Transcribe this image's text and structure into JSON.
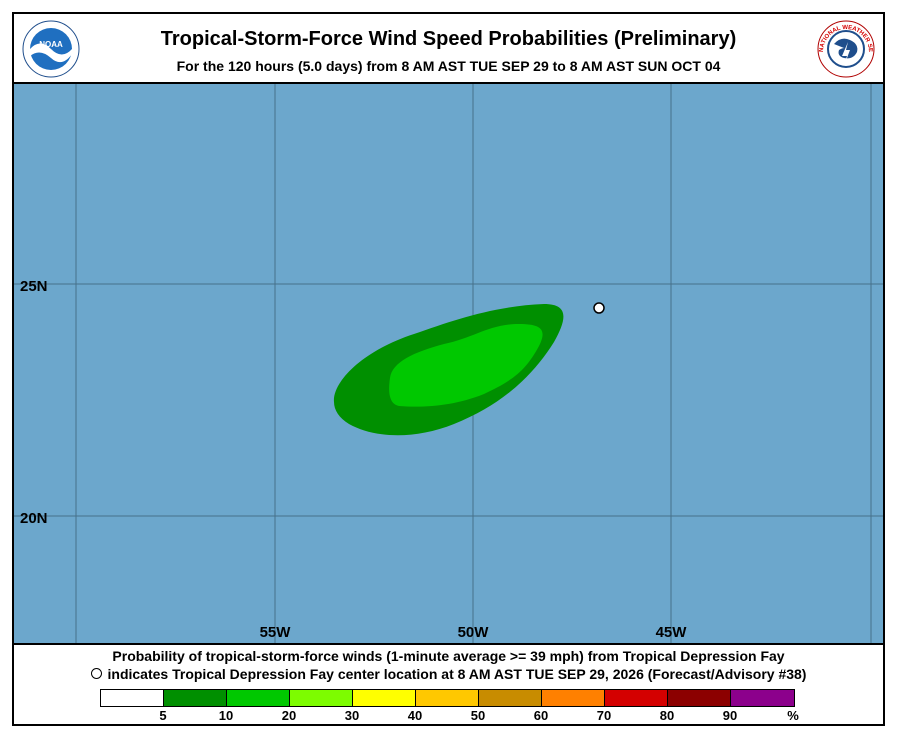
{
  "header": {
    "title": "Tropical-Storm-Force Wind Speed Probabilities (Preliminary)",
    "subtitle": "For the 120 hours (5.0 days) from 8 AM AST TUE SEP 29 to 8 AM AST SUN OCT 04",
    "left_logo_text": "NOAA",
    "left_logo_icon": "noaa-seal-icon",
    "right_logo_text": "NATIONAL WEATHER SERVICE",
    "right_logo_icon": "nws-seal-icon"
  },
  "map": {
    "background_color": "#6ca7cc",
    "longitude_labels": [
      "55W",
      "50W",
      "45W"
    ],
    "latitude_labels": [
      "25N",
      "20N"
    ],
    "probability_areas": [
      {
        "band": "5-10%",
        "color": "#008f00"
      },
      {
        "band": "10-20%",
        "color": "#00c800"
      }
    ],
    "storm_center_marker": "open-circle-icon"
  },
  "footer": {
    "line1": "Probability of tropical-storm-force winds (1-minute average >= 39 mph) from Tropical Depression Fay",
    "line2": "indicates Tropical Depression Fay center location at 8 AM AST TUE SEP 29, 2026 (Forecast/Advisory #38)",
    "legend": {
      "colors": [
        "#ffffff",
        "#008f00",
        "#00c800",
        "#7dfc00",
        "#ffff00",
        "#ffc800",
        "#c88c00",
        "#ff8000",
        "#d40000",
        "#8c0000",
        "#8c008c"
      ],
      "labels": [
        "5",
        "10",
        "20",
        "30",
        "40",
        "50",
        "60",
        "70",
        "80",
        "90",
        "%"
      ]
    }
  }
}
